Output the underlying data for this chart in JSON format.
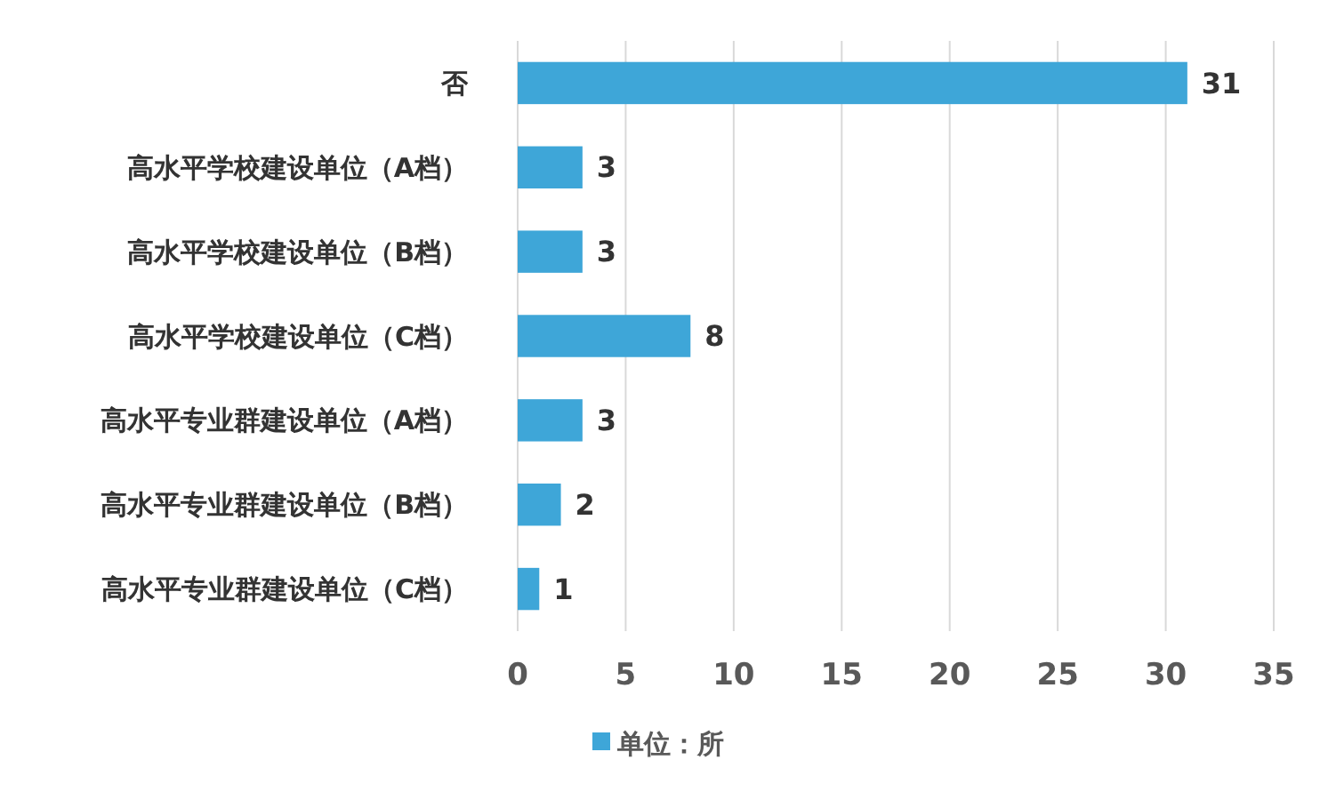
{
  "chart_data": {
    "type": "bar",
    "orientation": "horizontal",
    "categories": [
      "否",
      "高水平学校建设单位（A档）",
      "高水平学校建设单位（B档）",
      "高水平学校建设单位（C档）",
      "高水平专业群建设单位（A档）",
      "高水平专业群建设单位（B档）",
      "高水平专业群建设单位（C档）"
    ],
    "series": [
      {
        "name": "单位：所",
        "color": "#3ea6d8",
        "values": [
          31,
          3,
          3,
          8,
          3,
          2,
          1
        ]
      }
    ],
    "xlim": [
      0,
      35
    ],
    "xticks": [
      0,
      5,
      10,
      15,
      20,
      25,
      30,
      35
    ],
    "grid": "x",
    "legend": "bottom",
    "data_labels": true
  }
}
